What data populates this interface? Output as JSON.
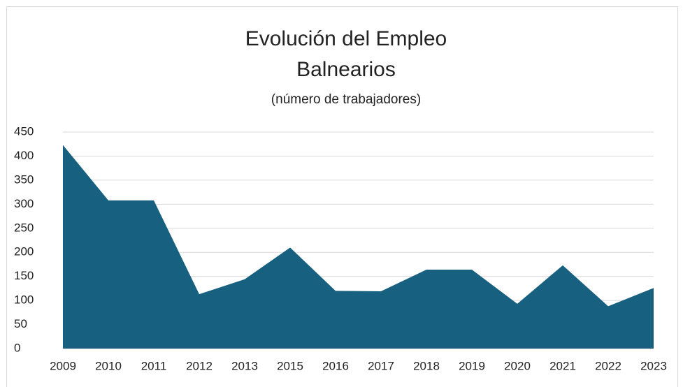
{
  "chart_data": {
    "type": "area",
    "title": [
      "Evolución del Empleo",
      "Balnearios"
    ],
    "subtitle": "(número de trabajadores)",
    "categories": [
      "2009",
      "2010",
      "2011",
      "2012",
      "2013",
      "2015",
      "2016",
      "2017",
      "2018",
      "2019",
      "2020",
      "2021",
      "2022",
      "2023"
    ],
    "values": [
      423,
      308,
      308,
      113,
      144,
      210,
      120,
      119,
      164,
      164,
      93,
      173,
      88,
      126
    ],
    "color": "#17607f",
    "ylim": [
      0,
      450
    ],
    "yticks": [
      0,
      50,
      100,
      150,
      200,
      250,
      300,
      350,
      400,
      450
    ],
    "grid": true
  }
}
